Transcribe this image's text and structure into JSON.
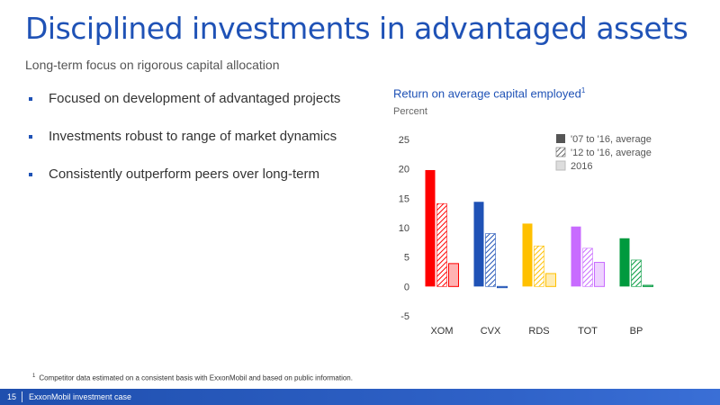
{
  "slide": {
    "title": "Disciplined investments in advantaged assets",
    "subtitle": "Long-term focus on rigorous capital allocation",
    "bullets": [
      "Focused on development of advantaged projects",
      "Investments robust to range of market dynamics",
      "Consistently outperform peers over long-term"
    ],
    "footnote_marker": "1",
    "footnote": "Competitor data estimated on a consistent basis with ExxonMobil and based on public information.",
    "page_number": "15",
    "footer_label": "ExxonMobil investment case"
  },
  "chart_data": {
    "type": "bar",
    "title": "Return on average capital employed",
    "title_footnote": "1",
    "ylabel": "Percent",
    "categories": [
      "XOM",
      "CVX",
      "RDS",
      "TOT",
      "BP"
    ],
    "ylim": [
      -5,
      25
    ],
    "yticks": [
      25,
      20,
      15,
      10,
      5,
      0,
      -5
    ],
    "series": [
      {
        "name": "'07 to '16, average",
        "values": [
          19.8,
          14.4,
          10.7,
          10.2,
          8.2
        ]
      },
      {
        "name": "'12 to '16, average",
        "values": [
          14.1,
          9.0,
          6.9,
          6.5,
          4.5
        ]
      },
      {
        "name": "2016",
        "values": [
          3.9,
          -0.2,
          2.2,
          4.1,
          0.2
        ]
      }
    ],
    "category_colors": {
      "XOM": "#ff0000",
      "CVX": "#1f52b6",
      "RDS": "#ffc000",
      "TOT": "#c86bff",
      "BP": "#009a3e"
    },
    "legend_position": "top-right",
    "grid": false
  }
}
